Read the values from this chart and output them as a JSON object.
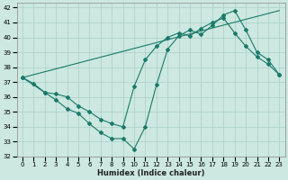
{
  "xlabel": "Humidex (Indice chaleur)",
  "bg_color": "#cce8e0",
  "grid_color": "#aacfc8",
  "line_color": "#1a7a6a",
  "xlim": [
    -0.5,
    23.5
  ],
  "ylim": [
    32,
    42.3
  ],
  "yticks": [
    32,
    33,
    34,
    35,
    36,
    37,
    38,
    39,
    40,
    41,
    42
  ],
  "xticks": [
    0,
    1,
    2,
    3,
    4,
    5,
    6,
    7,
    8,
    9,
    10,
    11,
    12,
    13,
    14,
    15,
    16,
    17,
    18,
    19,
    20,
    21,
    22,
    23
  ],
  "line1_x": [
    0,
    23
  ],
  "line1_y": [
    37.3,
    41.8
  ],
  "line2_x": [
    0,
    2,
    3,
    4,
    5,
    6,
    7,
    8,
    9,
    10,
    11,
    12,
    13,
    14,
    15,
    16,
    17,
    18,
    19,
    20,
    21,
    22,
    23
  ],
  "line2_y": [
    37.3,
    36.3,
    35.8,
    35.2,
    34.9,
    34.2,
    33.6,
    33.2,
    33.2,
    32.5,
    34.0,
    36.8,
    39.2,
    40.1,
    40.5,
    40.2,
    40.8,
    41.5,
    41.8,
    40.5,
    39.0,
    38.5,
    37.5
  ],
  "line3_x": [
    0,
    1,
    2,
    3,
    4,
    5,
    6,
    7,
    8,
    9,
    10,
    11,
    12,
    13,
    14,
    15,
    16,
    17,
    18,
    19,
    20,
    21,
    22,
    23
  ],
  "line3_y": [
    37.3,
    36.9,
    36.3,
    36.2,
    36.0,
    35.4,
    35.0,
    34.5,
    34.2,
    34.0,
    36.7,
    38.5,
    39.4,
    40.0,
    40.3,
    40.1,
    40.6,
    41.0,
    41.3,
    40.3,
    39.4,
    38.7,
    38.2,
    37.5
  ]
}
